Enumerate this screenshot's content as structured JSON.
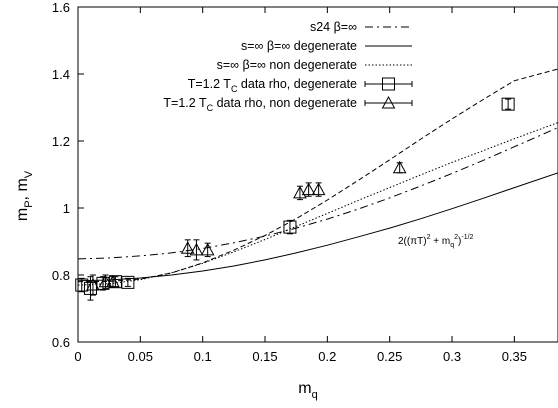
{
  "chart_data": {
    "type": "line",
    "title": "",
    "xlabel": "m",
    "xlabel_sub": "q",
    "ylabel": "m",
    "ylabel_sub1": "P",
    "ylabel_mid": ", m",
    "ylabel_sub2": "V",
    "xlim": [
      0,
      0.385
    ],
    "ylim": [
      0.6,
      1.6
    ],
    "x_ticks": [
      0,
      0.05,
      0.1,
      0.15,
      0.2,
      0.25,
      0.3,
      0.35
    ],
    "x_tick_labels": [
      "0",
      "0.05",
      "0.1",
      "0.15",
      "0.2",
      "0.25",
      "0.3",
      "0.35"
    ],
    "y_ticks": [
      0.6,
      0.8,
      1.0,
      1.2,
      1.4,
      1.6
    ],
    "y_tick_labels": [
      "0.6",
      "0.8",
      "1",
      "1.2",
      "1.4",
      "1.6"
    ],
    "grid": false,
    "legend_position": "top-right",
    "annotation": {
      "prefix": "2((πT)",
      "sup1": "2",
      "mid": " + m",
      "sub": "q",
      "sup2": "2",
      "end": ")",
      "sup3": "-1/2",
      "x": 0.232,
      "y": 0.845
    },
    "series": [
      {
        "name": "s24 β=∞",
        "style": "dashdot",
        "color": "#000000",
        "x": [
          0,
          0.025,
          0.05,
          0.075,
          0.1,
          0.125,
          0.15,
          0.175,
          0.2,
          0.225,
          0.25,
          0.275,
          0.3,
          0.325,
          0.35,
          0.385
        ],
        "y": [
          0.848,
          0.851,
          0.857,
          0.866,
          0.879,
          0.896,
          0.916,
          0.94,
          0.967,
          0.997,
          1.03,
          1.066,
          1.103,
          1.142,
          1.183,
          1.24
        ]
      },
      {
        "name": "s=∞ β=∞ degenerate",
        "style": "solid",
        "color": "#000000",
        "x": [
          0,
          0.025,
          0.05,
          0.075,
          0.1,
          0.125,
          0.15,
          0.175,
          0.2,
          0.225,
          0.25,
          0.275,
          0.3,
          0.325,
          0.35,
          0.385
        ],
        "y": [
          0.783,
          0.785,
          0.791,
          0.8,
          0.812,
          0.827,
          0.845,
          0.866,
          0.889,
          0.914,
          0.94,
          0.968,
          0.998,
          1.029,
          1.061,
          1.105
        ]
      },
      {
        "name": "s=∞ β=∞ non degenerate",
        "style": "dotted",
        "color": "#000000",
        "x": [
          0,
          0.025,
          0.05,
          0.075,
          0.1,
          0.125,
          0.15,
          0.175,
          0.2,
          0.225,
          0.25,
          0.275,
          0.3,
          0.325,
          0.35,
          0.385
        ],
        "y": [
          0.77,
          0.774,
          0.786,
          0.807,
          0.835,
          0.869,
          0.906,
          0.945,
          0.984,
          1.023,
          1.061,
          1.099,
          1.136,
          1.171,
          1.207,
          1.255
        ]
      },
      {
        "name": "T=1.2 T",
        "name_sub": "C",
        "name_rest": " data rho, degenerate",
        "style": "points-square",
        "color": "#000000",
        "points": [
          {
            "x": 0.003,
            "y": 0.77,
            "err": 0.02
          },
          {
            "x": 0.01,
            "y": 0.76,
            "err": 0.035
          },
          {
            "x": 0.02,
            "y": 0.775,
            "err": 0.02
          },
          {
            "x": 0.03,
            "y": 0.78,
            "err": 0.015
          },
          {
            "x": 0.04,
            "y": 0.778,
            "err": 0.012
          },
          {
            "x": 0.17,
            "y": 0.943,
            "err": 0.02
          },
          {
            "x": 0.345,
            "y": 1.31,
            "err": 0.015
          }
        ]
      },
      {
        "name": "T=1.2 T",
        "name_sub": "C",
        "name_rest": " data rho, non degenerate",
        "style": "points-triangle",
        "color": "#000000",
        "points": [
          {
            "x": 0.012,
            "y": 0.77,
            "err": 0.03
          },
          {
            "x": 0.022,
            "y": 0.78,
            "err": 0.02
          },
          {
            "x": 0.028,
            "y": 0.78,
            "err": 0.015
          },
          {
            "x": 0.088,
            "y": 0.88,
            "err": 0.025
          },
          {
            "x": 0.095,
            "y": 0.875,
            "err": 0.03
          },
          {
            "x": 0.104,
            "y": 0.875,
            "err": 0.02
          },
          {
            "x": 0.178,
            "y": 1.045,
            "err": 0.02
          },
          {
            "x": 0.185,
            "y": 1.055,
            "err": 0.02
          },
          {
            "x": 0.193,
            "y": 1.055,
            "err": 0.02
          },
          {
            "x": 0.258,
            "y": 1.12,
            "err": 0.015
          }
        ]
      },
      {
        "name": "",
        "style": "dashed-fit",
        "color": "#000000",
        "x": [
          0,
          0.025,
          0.05,
          0.075,
          0.1,
          0.125,
          0.15,
          0.175,
          0.2,
          0.225,
          0.25,
          0.275,
          0.3,
          0.325,
          0.35,
          0.385
        ],
        "y": [
          0.78,
          0.781,
          0.788,
          0.806,
          0.836,
          0.874,
          0.918,
          0.968,
          1.024,
          1.083,
          1.144,
          1.206,
          1.266,
          1.324,
          1.38,
          1.415
        ]
      }
    ]
  }
}
